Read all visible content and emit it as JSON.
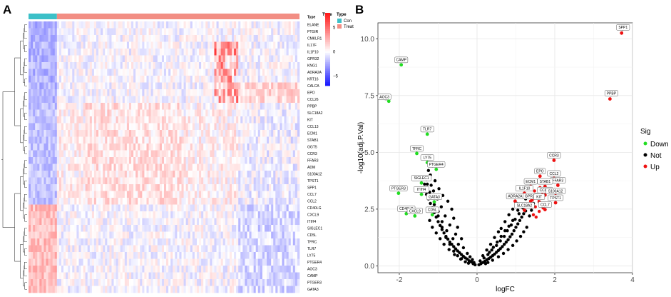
{
  "panel_labels": {
    "a": "A",
    "b": "B"
  },
  "chart_data": [
    {
      "type": "heatmap",
      "panel": "A",
      "n_columns": 124,
      "annotation": {
        "title": "Type",
        "groups": [
          {
            "name": "Con",
            "count": 13,
            "color": "#3cc0c8"
          },
          {
            "name": "Treat",
            "count": 111,
            "color": "#f28e84"
          }
        ]
      },
      "color_scale": {
        "title": "Type",
        "ticks": [
          5,
          0,
          -5
        ],
        "range": [
          -7,
          8
        ],
        "low_color": "#1a1aff",
        "mid_color": "#ffffff",
        "high_color": "#ff1a1a"
      },
      "rows": [
        "ELANE",
        "PTGIR",
        "CMKLR1",
        "IL17F",
        "IL1F10",
        "GPR32",
        "KNG1",
        "ADRA2A",
        "KRT16",
        "CALCA",
        "EPO",
        "CCL26",
        "PPBP",
        "SLC18A2",
        "KIT",
        "CCL13",
        "ECM1",
        "STAB1",
        "GGT5",
        "CCR3",
        "FFAR3",
        "ADM",
        "S100A12",
        "TPST1",
        "SPP1",
        "CCL7",
        "CCL2",
        "CD40LG",
        "CXCL9",
        "ITIH4",
        "SIGLEC1",
        "CD5L",
        "TFRC",
        "TLR7",
        "LY75",
        "PTGER4",
        "AOC3",
        "CAMP",
        "PTGER3",
        "GATA3"
      ]
    },
    {
      "type": "scatter",
      "panel": "B",
      "xlabel": "logFC",
      "ylabel": "-log10(adj.P.Val)",
      "xlim": [
        -2.55,
        4.0
      ],
      "ylim": [
        -0.3,
        10.7
      ],
      "xticks": [
        -2,
        0,
        2,
        4
      ],
      "yticks": [
        0.0,
        2.5,
        5.0,
        7.5,
        10.0
      ],
      "ytick_labels": [
        "0.0",
        "2.5",
        "5.0",
        "7.5",
        "10.0"
      ],
      "legend": {
        "title": "Sig",
        "position": "right",
        "entries": [
          {
            "name": "Down",
            "color": "#22dd22"
          },
          {
            "name": "Not",
            "color": "#000000"
          },
          {
            "name": "Up",
            "color": "#ee1111"
          }
        ]
      },
      "labeled_points": [
        {
          "label": "SPP1",
          "x": 3.72,
          "y": 10.25,
          "sig": "Up"
        },
        {
          "label": "PPBP",
          "x": 3.42,
          "y": 7.35,
          "sig": "Up"
        },
        {
          "label": "CAMP",
          "x": -1.95,
          "y": 8.85,
          "sig": "Down"
        },
        {
          "label": "AOC3",
          "x": -2.27,
          "y": 7.25,
          "sig": "Down"
        },
        {
          "label": "TLR7",
          "x": -1.28,
          "y": 5.8,
          "sig": "Down"
        },
        {
          "label": "TFRC",
          "x": -1.55,
          "y": 4.95,
          "sig": "Down"
        },
        {
          "label": "LY75",
          "x": -1.28,
          "y": 4.55,
          "sig": "Down"
        },
        {
          "label": "PTGER4",
          "x": -1.05,
          "y": 4.25,
          "sig": "Down"
        },
        {
          "label": "SIGLEC1",
          "x": -1.43,
          "y": 3.65,
          "sig": "Down"
        },
        {
          "label": "PTGER3",
          "x": -2.02,
          "y": 3.2,
          "sig": "Down"
        },
        {
          "label": "ITIH4",
          "x": -1.43,
          "y": 3.15,
          "sig": "Down"
        },
        {
          "label": "GATA3",
          "x": -1.1,
          "y": 2.82,
          "sig": "Down"
        },
        {
          "label": "CD40LG",
          "x": -1.82,
          "y": 2.3,
          "sig": "Down"
        },
        {
          "label": "CXCL9",
          "x": -1.6,
          "y": 2.2,
          "sig": "Down"
        },
        {
          "label": "CD5L",
          "x": -1.15,
          "y": 2.25,
          "sig": "Down"
        },
        {
          "label": "CCR3",
          "x": 1.98,
          "y": 4.65,
          "sig": "Up"
        },
        {
          "label": "EPO",
          "x": 1.62,
          "y": 3.95,
          "sig": "Up"
        },
        {
          "label": "CCL2",
          "x": 1.98,
          "y": 3.85,
          "sig": "Up"
        },
        {
          "label": "FFAR3",
          "x": 2.08,
          "y": 3.55,
          "sig": "Up"
        },
        {
          "label": "ECM1",
          "x": 1.38,
          "y": 3.5,
          "sig": "Up"
        },
        {
          "label": "STAB1",
          "x": 1.75,
          "y": 3.5,
          "sig": "Up"
        },
        {
          "label": "IL1F10",
          "x": 1.22,
          "y": 3.2,
          "sig": "Up"
        },
        {
          "label": "CCL26",
          "x": 1.75,
          "y": 3.12,
          "sig": "Up"
        },
        {
          "label": "S100A12",
          "x": 2.02,
          "y": 3.08,
          "sig": "Up"
        },
        {
          "label": "ADRA2A",
          "x": 0.98,
          "y": 2.85,
          "sig": "Up"
        },
        {
          "label": "GPR32",
          "x": 1.38,
          "y": 2.85,
          "sig": "Up"
        },
        {
          "label": "KIT",
          "x": 1.6,
          "y": 2.82,
          "sig": "Up"
        },
        {
          "label": "TPST1",
          "x": 2.02,
          "y": 2.78,
          "sig": "Up"
        },
        {
          "label": "SLC18A2",
          "x": 1.22,
          "y": 2.45,
          "sig": "Up"
        },
        {
          "label": "CCL7",
          "x": 1.75,
          "y": 2.48,
          "sig": "Up"
        }
      ],
      "not_points": [
        [
          -0.05,
          0.05
        ],
        [
          0.05,
          0.05
        ],
        [
          -0.1,
          0.1
        ],
        [
          0.1,
          0.1
        ],
        [
          -0.15,
          0.18
        ],
        [
          0.15,
          0.15
        ],
        [
          -0.2,
          0.22
        ],
        [
          0.2,
          0.2
        ],
        [
          -0.25,
          0.3
        ],
        [
          0.25,
          0.27
        ],
        [
          -0.3,
          0.35
        ],
        [
          0.3,
          0.32
        ],
        [
          -0.35,
          0.42
        ],
        [
          0.35,
          0.38
        ],
        [
          -0.4,
          0.5
        ],
        [
          0.4,
          0.45
        ],
        [
          -0.45,
          0.58
        ],
        [
          0.45,
          0.52
        ],
        [
          -0.5,
          0.66
        ],
        [
          0.5,
          0.6
        ],
        [
          -0.55,
          0.75
        ],
        [
          0.55,
          0.68
        ],
        [
          -0.6,
          0.85
        ],
        [
          0.6,
          0.76
        ],
        [
          -0.65,
          0.95
        ],
        [
          0.65,
          0.85
        ],
        [
          -0.7,
          1.05
        ],
        [
          0.7,
          0.95
        ],
        [
          -0.75,
          1.18
        ],
        [
          0.75,
          1.05
        ],
        [
          -0.8,
          1.3
        ],
        [
          0.8,
          1.15
        ],
        [
          -0.85,
          1.45
        ],
        [
          0.85,
          1.28
        ],
        [
          -0.9,
          1.6
        ],
        [
          0.9,
          1.4
        ],
        [
          -0.95,
          1.78
        ],
        [
          0.95,
          1.55
        ],
        [
          -1.0,
          1.95
        ],
        [
          1.0,
          1.7
        ],
        [
          -1.05,
          2.15
        ],
        [
          1.05,
          1.85
        ],
        [
          -1.1,
          2.35
        ],
        [
          1.1,
          2.0
        ],
        [
          -1.15,
          2.55
        ],
        [
          1.15,
          2.15
        ],
        [
          -1.2,
          2.75
        ],
        [
          1.2,
          2.3
        ],
        [
          -1.25,
          2.95
        ],
        [
          1.25,
          2.42
        ],
        [
          -1.3,
          3.15
        ],
        [
          -0.3,
          0.18
        ],
        [
          -0.42,
          0.3
        ],
        [
          -0.58,
          0.5
        ],
        [
          -0.72,
          0.72
        ],
        [
          -0.85,
          0.95
        ],
        [
          -0.95,
          1.2
        ],
        [
          -1.05,
          1.45
        ],
        [
          -1.15,
          1.7
        ],
        [
          -1.22,
          2.0
        ],
        [
          0.28,
          0.15
        ],
        [
          0.4,
          0.25
        ],
        [
          0.55,
          0.4
        ],
        [
          0.68,
          0.55
        ],
        [
          0.8,
          0.72
        ],
        [
          0.92,
          0.9
        ],
        [
          1.02,
          1.1
        ],
        [
          1.12,
          1.3
        ],
        [
          1.2,
          1.5
        ],
        [
          1.28,
          1.7
        ],
        [
          -0.48,
          0.95
        ],
        [
          -0.62,
          1.2
        ],
        [
          -0.78,
          1.55
        ],
        [
          -0.9,
          1.95
        ],
        [
          -1.0,
          2.4
        ],
        [
          -0.55,
          1.4
        ],
        [
          -0.7,
          1.8
        ],
        [
          -0.82,
          2.2
        ],
        [
          -0.92,
          2.6
        ],
        [
          -1.02,
          2.95
        ],
        [
          -1.12,
          3.3
        ],
        [
          -1.18,
          3.55
        ],
        [
          -0.65,
          2.5
        ],
        [
          -0.75,
          2.85
        ],
        [
          -0.88,
          3.1
        ],
        [
          -0.98,
          3.4
        ],
        [
          -1.08,
          3.75
        ],
        [
          -1.2,
          4.0
        ],
        [
          -1.25,
          4.2
        ],
        [
          -1.3,
          3.8
        ],
        [
          -1.38,
          3.4
        ],
        [
          -1.35,
          3.6
        ],
        [
          -1.15,
          4.4
        ],
        [
          -1.22,
          3.25
        ],
        [
          -0.6,
          2.1
        ],
        [
          -0.5,
          1.7
        ],
        [
          -0.4,
          1.2
        ],
        [
          -0.35,
          0.8
        ],
        [
          -0.25,
          0.55
        ],
        [
          -0.18,
          0.4
        ],
        [
          0.18,
          0.35
        ],
        [
          0.28,
          0.5
        ],
        [
          0.38,
          0.7
        ],
        [
          0.5,
          0.9
        ],
        [
          0.6,
          1.1
        ],
        [
          0.7,
          1.3
        ],
        [
          0.78,
          1.55
        ],
        [
          0.88,
          1.8
        ],
        [
          0.98,
          2.05
        ],
        [
          1.08,
          2.3
        ],
        [
          1.18,
          2.55
        ],
        [
          1.3,
          2.65
        ],
        [
          1.35,
          2.2
        ],
        [
          1.4,
          2.45
        ],
        [
          1.45,
          2.75
        ],
        [
          0.62,
          1.65
        ],
        [
          0.72,
          1.95
        ],
        [
          0.82,
          2.25
        ],
        [
          0.92,
          2.5
        ],
        [
          1.02,
          2.75
        ],
        [
          0.45,
          1.25
        ],
        [
          0.55,
          1.5
        ],
        [
          0.35,
          0.95
        ],
        [
          0.25,
          0.7
        ],
        [
          0.15,
          0.45
        ],
        [
          -0.12,
          0.28
        ],
        [
          -0.08,
          0.15
        ],
        [
          0.08,
          0.22
        ],
        [
          -0.22,
          0.12
        ],
        [
          0.22,
          0.1
        ],
        [
          -1.1,
          2.7
        ],
        [
          -1.0,
          2.2
        ],
        [
          -0.9,
          1.7
        ],
        [
          -0.8,
          1.25
        ],
        [
          -0.7,
          0.95
        ],
        [
          -0.6,
          0.65
        ],
        [
          -0.5,
          0.45
        ],
        [
          -0.4,
          0.32
        ],
        [
          0.32,
          0.6
        ],
        [
          0.42,
          0.82
        ],
        [
          0.52,
          1.05
        ],
        [
          0.62,
          1.3
        ],
        [
          0.72,
          1.55
        ],
        [
          0.82,
          1.75
        ],
        [
          0.92,
          2.0
        ],
        [
          1.05,
          2.45
        ],
        [
          1.15,
          2.7
        ],
        [
          1.25,
          2.95
        ],
        [
          -1.28,
          3.6
        ],
        [
          -1.18,
          3.1
        ]
      ],
      "up_points": [
        [
          1.42,
          2.9
        ],
        [
          1.5,
          2.6
        ],
        [
          1.55,
          3.05
        ],
        [
          1.6,
          2.4
        ],
        [
          1.65,
          2.75
        ],
        [
          1.7,
          2.55
        ],
        [
          1.45,
          2.25
        ],
        [
          1.52,
          2.15
        ],
        [
          1.58,
          2.95
        ],
        [
          1.68,
          3.25
        ],
        [
          1.48,
          3.3
        ],
        [
          1.62,
          3.45
        ],
        [
          1.85,
          3.3
        ],
        [
          1.4,
          2.6
        ]
      ]
    }
  ]
}
